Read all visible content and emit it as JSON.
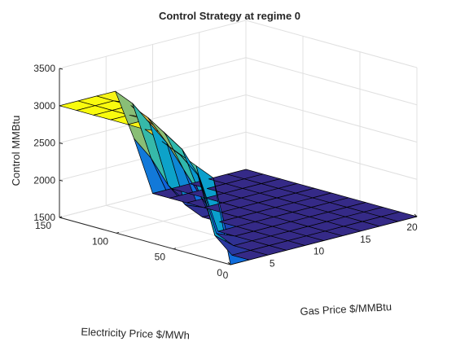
{
  "chart_data": {
    "type": "surface",
    "title": "Control Strategy at regime 0",
    "xlabel": "Gas Price $/MMBtu",
    "ylabel": "Electricity Price $/MWh",
    "zlabel": "Control MMBtu",
    "xlim": [
      0,
      20
    ],
    "ylim": [
      0,
      150
    ],
    "zlim": [
      1500,
      3500
    ],
    "xticks": [
      "0",
      "5",
      "10",
      "15",
      "20"
    ],
    "yticks": [
      "0",
      "50",
      "100",
      "150"
    ],
    "zticks": [
      "1500",
      "2000",
      "2500",
      "3000",
      "3500"
    ],
    "colormap": "parula",
    "colors": {
      "low": "#352a87",
      "mid": "#21b7b6",
      "high": "#f9fb0e"
    },
    "x": [
      0,
      2,
      4,
      6,
      8,
      10,
      12,
      14,
      16,
      18,
      20
    ],
    "y": [
      0,
      15,
      30,
      45,
      60,
      75,
      90,
      105,
      120,
      135,
      150
    ],
    "z_rows_by_y": [
      [
        1500,
        1500,
        1500,
        1500,
        1500,
        1500,
        1500,
        1500,
        1500,
        1500,
        1500
      ],
      [
        2600,
        1500,
        1500,
        1500,
        1500,
        1500,
        1500,
        1500,
        1500,
        1500,
        1500
      ],
      [
        2700,
        1700,
        1500,
        1500,
        1500,
        1500,
        1500,
        1500,
        1500,
        1500,
        1500
      ],
      [
        2800,
        2450,
        1600,
        1500,
        1500,
        1500,
        1500,
        1500,
        1500,
        1500,
        1500
      ],
      [
        2900,
        2650,
        2300,
        1500,
        1500,
        1500,
        1500,
        1500,
        1500,
        1500,
        1500
      ],
      [
        3000,
        2900,
        2600,
        1900,
        1500,
        1500,
        1500,
        1500,
        1500,
        1500,
        1500
      ],
      [
        3000,
        3000,
        2750,
        2200,
        1500,
        1500,
        1500,
        1500,
        1500,
        1500,
        1500
      ],
      [
        3000,
        3000,
        2900,
        2500,
        1600,
        1500,
        1500,
        1500,
        1500,
        1500,
        1500
      ],
      [
        3000,
        3000,
        3000,
        2700,
        1800,
        1500,
        1500,
        1500,
        1500,
        1500,
        1500
      ],
      [
        3000,
        3000,
        3000,
        2900,
        2100,
        1500,
        1500,
        1500,
        1500,
        1500,
        1500
      ],
      [
        3000,
        3000,
        3000,
        3000,
        2300,
        1500,
        1500,
        1500,
        1500,
        1500,
        1500
      ]
    ]
  }
}
